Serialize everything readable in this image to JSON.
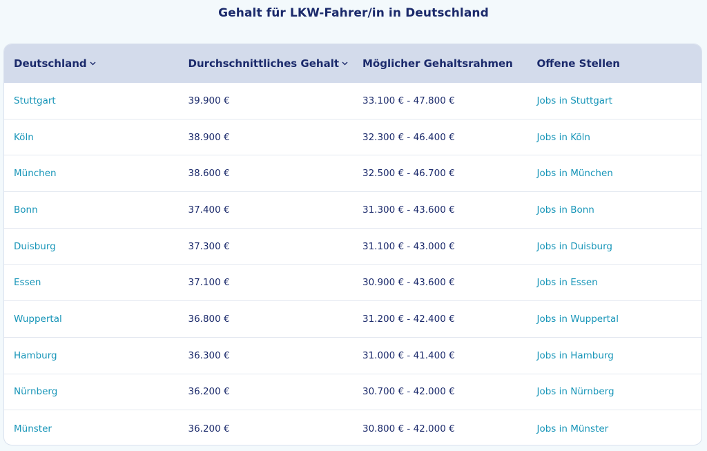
{
  "title": "Gehalt für LKW-Fahrer/in in Deutschland",
  "columns": {
    "region": "Deutschland",
    "avg": "Durchschnittliches Gehalt",
    "range": "Möglicher Gehaltsrahmen",
    "jobs": "Offene Stellen"
  },
  "rows": [
    {
      "city": "Stuttgart",
      "avg": "39.900 €",
      "range": "33.100 € - 47.800 €",
      "jobs": "Jobs in Stuttgart"
    },
    {
      "city": "Köln",
      "avg": "38.900 €",
      "range": "32.300 € - 46.400 €",
      "jobs": "Jobs in Köln"
    },
    {
      "city": "München",
      "avg": "38.600 €",
      "range": "32.500 € - 46.700 €",
      "jobs": "Jobs in München"
    },
    {
      "city": "Bonn",
      "avg": "37.400 €",
      "range": "31.300 € - 43.600 €",
      "jobs": "Jobs in Bonn"
    },
    {
      "city": "Duisburg",
      "avg": "37.300 €",
      "range": "31.100 € - 43.000 €",
      "jobs": "Jobs in Duisburg"
    },
    {
      "city": "Essen",
      "avg": "37.100 €",
      "range": "30.900 € - 43.600 €",
      "jobs": "Jobs in Essen"
    },
    {
      "city": "Wuppertal",
      "avg": "36.800 €",
      "range": "31.200 € - 42.400 €",
      "jobs": "Jobs in Wuppertal"
    },
    {
      "city": "Hamburg",
      "avg": "36.300 €",
      "range": "31.000 € - 41.400 €",
      "jobs": "Jobs in Hamburg"
    },
    {
      "city": "Nürnberg",
      "avg": "36.200 €",
      "range": "30.700 € - 42.000 €",
      "jobs": "Jobs in Nürnberg"
    },
    {
      "city": "Münster",
      "avg": "36.200 €",
      "range": "30.800 € - 42.000 €",
      "jobs": "Jobs in Münster"
    }
  ],
  "icons": {
    "sort": "chevron-down-icon"
  },
  "colors": {
    "accent": "#1795b8",
    "text": "#1b2a6b",
    "header_bg": "#d3dbeb"
  }
}
